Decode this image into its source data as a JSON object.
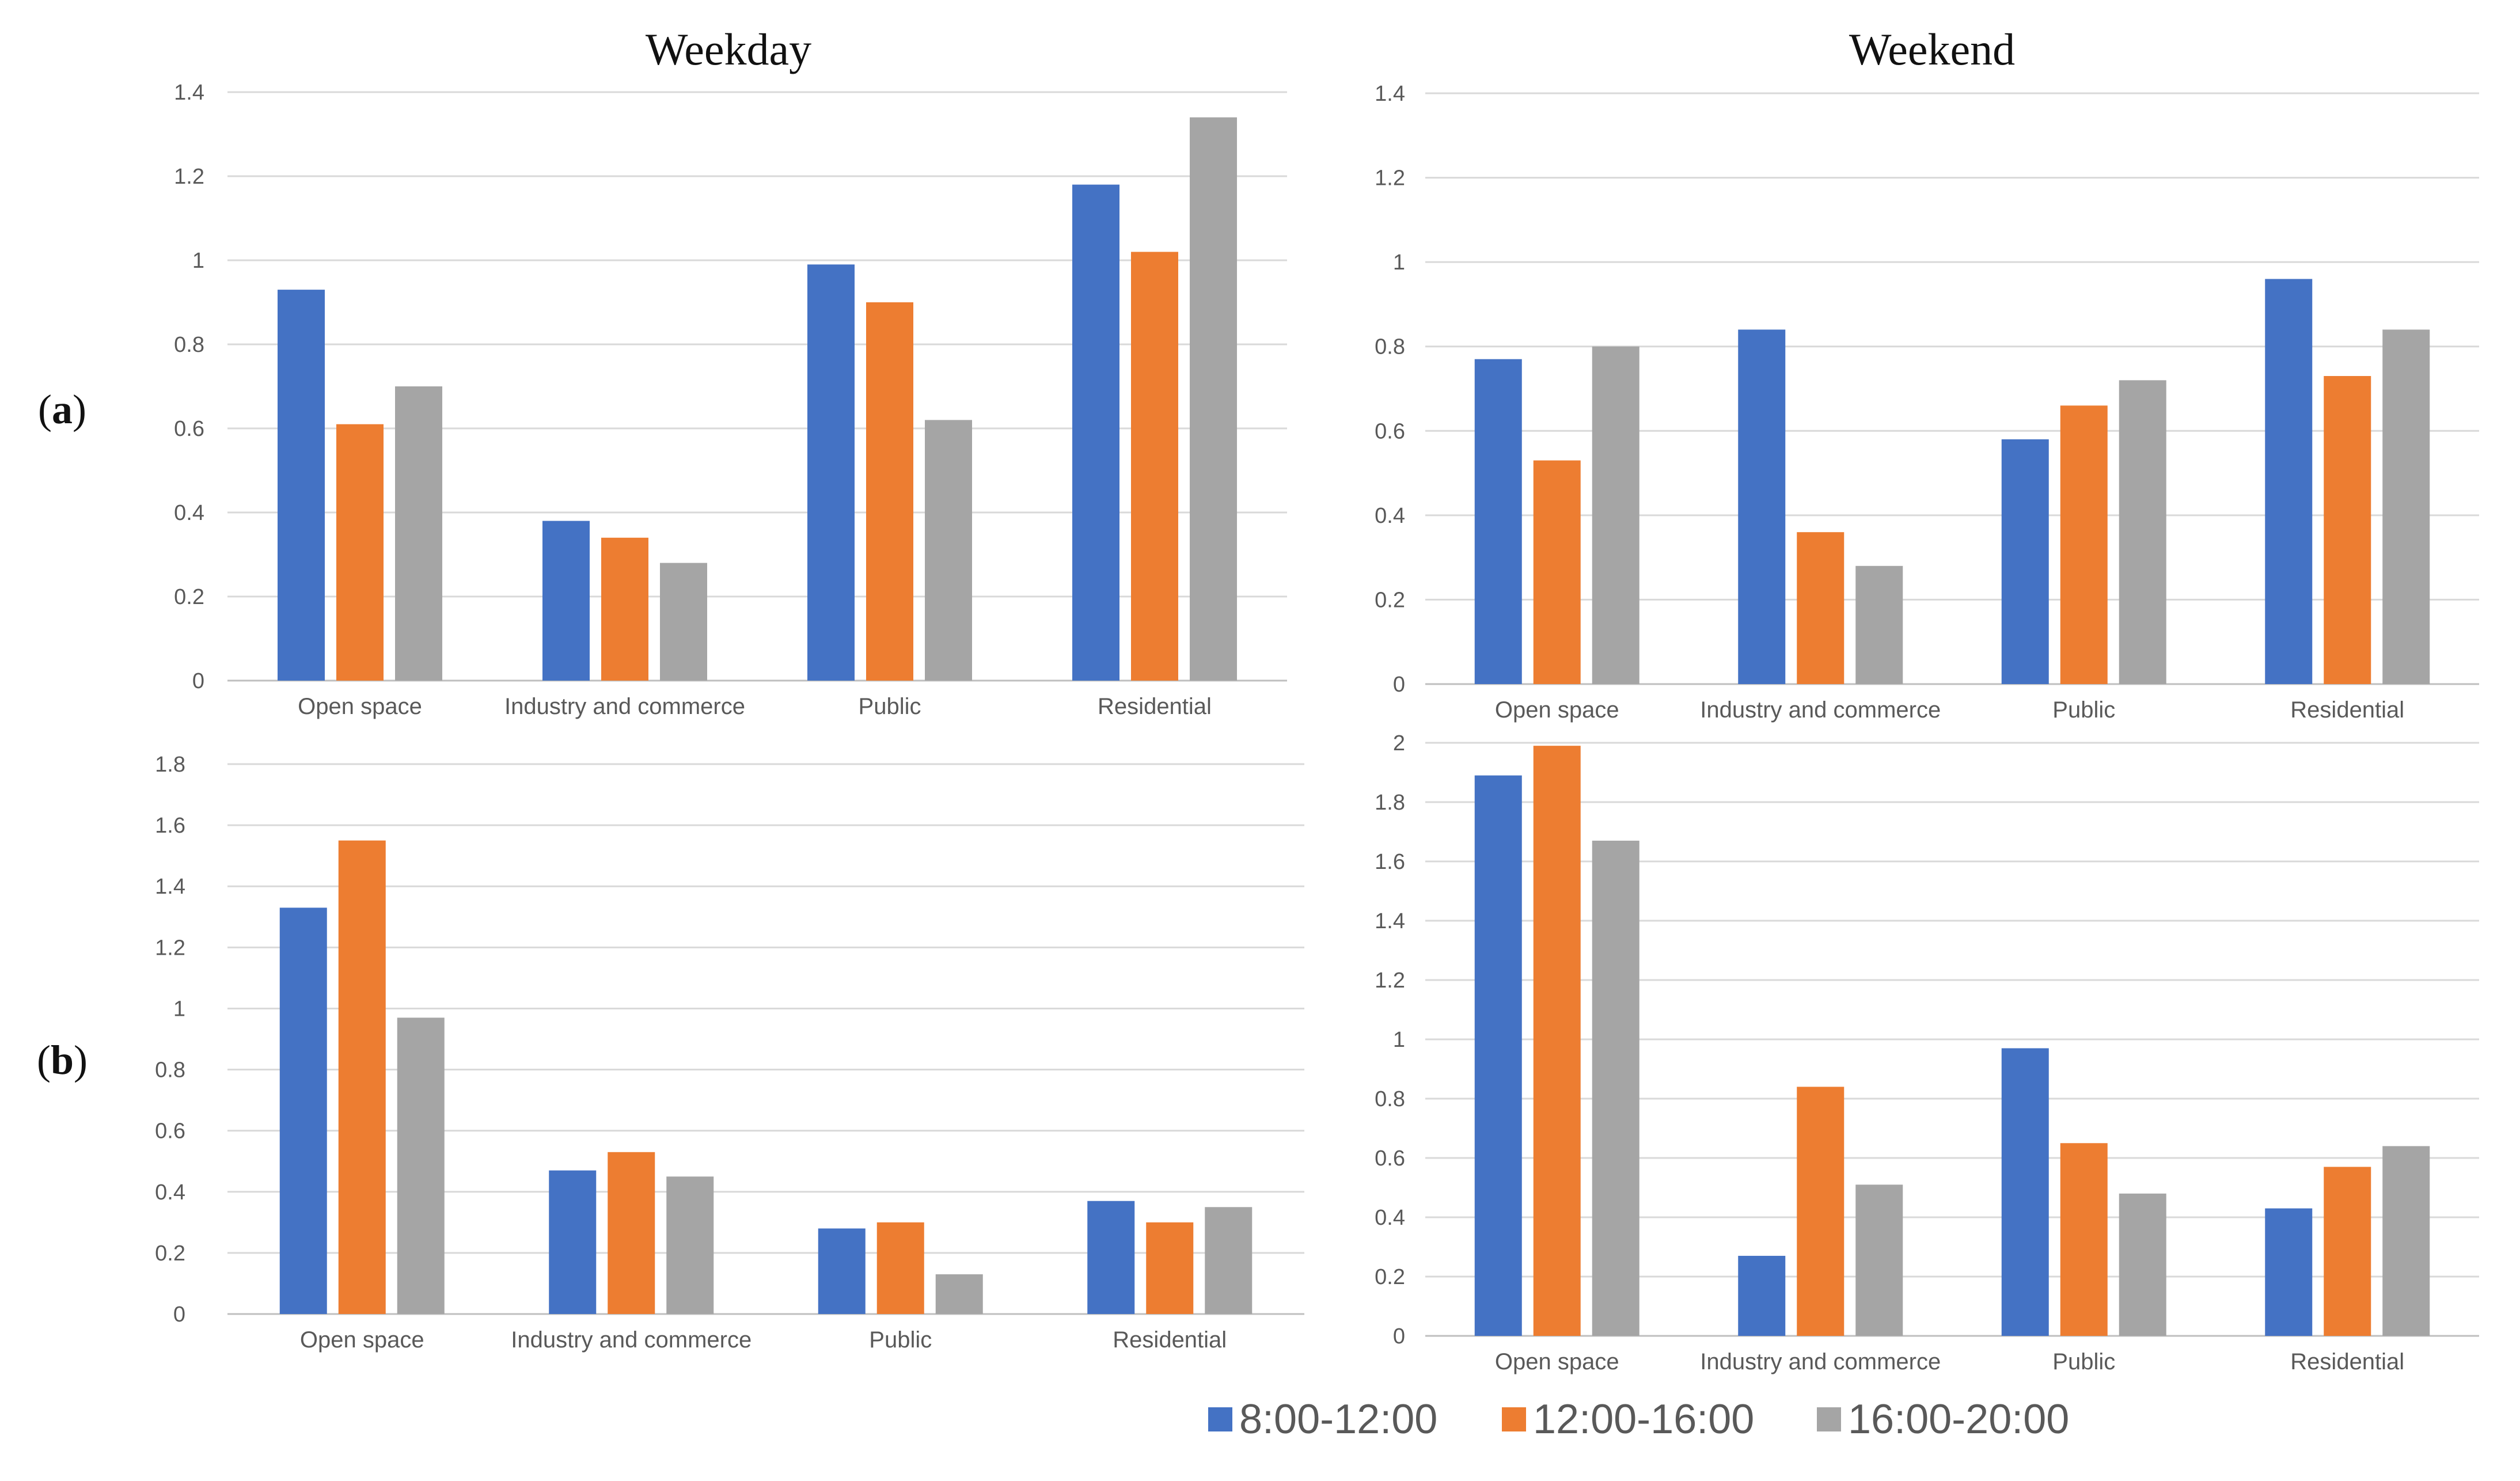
{
  "column_titles": {
    "weekday": "Weekday",
    "weekend": "Weekend"
  },
  "row_labels": {
    "a": {
      "open": "(",
      "letter": "a",
      "close": ")"
    },
    "b": {
      "open": "(",
      "letter": "b",
      "close": ")"
    }
  },
  "legend": [
    {
      "label": "8:00-12:00",
      "color": "#4472c4"
    },
    {
      "label": "12:00-16:00",
      "color": "#ed7d31"
    },
    {
      "label": "16:00-20:00",
      "color": "#a5a5a5"
    }
  ],
  "chart_data": [
    {
      "id": "a-weekday",
      "type": "bar",
      "row": "a",
      "column": "Weekday",
      "categories": [
        "Open space",
        "Industry and commerce",
        "Public",
        "Residential"
      ],
      "series": [
        {
          "name": "8:00-12:00",
          "color": "#4472c4",
          "values": [
            0.93,
            0.38,
            0.99,
            1.18
          ]
        },
        {
          "name": "12:00-16:00",
          "color": "#ed7d31",
          "values": [
            0.61,
            0.34,
            0.9,
            1.02
          ]
        },
        {
          "name": "16:00-20:00",
          "color": "#a5a5a5",
          "values": [
            0.7,
            0.28,
            0.62,
            1.34
          ]
        }
      ],
      "yticks": [
        "0",
        "0.2",
        "0.4",
        "0.6",
        "0.8",
        "1",
        "1.2",
        "1.4"
      ],
      "ylim": [
        0,
        1.4
      ],
      "grid": true
    },
    {
      "id": "a-weekend",
      "type": "bar",
      "row": "a",
      "column": "Weekend",
      "categories": [
        "Open space",
        "Industry and commerce",
        "Public",
        "Residential"
      ],
      "series": [
        {
          "name": "8:00-12:00",
          "color": "#4472c4",
          "values": [
            0.77,
            0.84,
            0.58,
            0.96
          ]
        },
        {
          "name": "12:00-16:00",
          "color": "#ed7d31",
          "values": [
            0.53,
            0.36,
            0.66,
            0.73
          ]
        },
        {
          "name": "16:00-20:00",
          "color": "#a5a5a5",
          "values": [
            0.8,
            0.28,
            0.72,
            0.84
          ]
        }
      ],
      "yticks": [
        "0",
        "0.2",
        "0.4",
        "0.6",
        "0.8",
        "1",
        "1.2",
        "1.4"
      ],
      "ylim": [
        0,
        1.4
      ],
      "grid": true
    },
    {
      "id": "b-weekday",
      "type": "bar",
      "row": "b",
      "column": "Weekday",
      "categories": [
        "Open space",
        "Industry and commerce",
        "Public",
        "Residential"
      ],
      "series": [
        {
          "name": "8:00-12:00",
          "color": "#4472c4",
          "values": [
            1.33,
            0.47,
            0.28,
            0.37
          ]
        },
        {
          "name": "12:00-16:00",
          "color": "#ed7d31",
          "values": [
            1.55,
            0.53,
            0.3,
            0.3
          ]
        },
        {
          "name": "16:00-20:00",
          "color": "#a5a5a5",
          "values": [
            0.97,
            0.45,
            0.13,
            0.35
          ]
        }
      ],
      "yticks": [
        "0",
        "0.2",
        "0.4",
        "0.6",
        "0.8",
        "1",
        "1.2",
        "1.4",
        "1.6",
        "1.8"
      ],
      "ylim": [
        0,
        1.8
      ],
      "grid": true
    },
    {
      "id": "b-weekend",
      "type": "bar",
      "row": "b",
      "column": "Weekend",
      "categories": [
        "Open space",
        "Industry and commerce",
        "Public",
        "Residential"
      ],
      "series": [
        {
          "name": "8:00-12:00",
          "color": "#4472c4",
          "values": [
            1.89,
            0.27,
            0.97,
            0.43
          ]
        },
        {
          "name": "12:00-16:00",
          "color": "#ed7d31",
          "values": [
            1.99,
            0.84,
            0.65,
            0.57
          ]
        },
        {
          "name": "16:00-20:00",
          "color": "#a5a5a5",
          "values": [
            1.67,
            0.51,
            0.48,
            0.64
          ]
        }
      ],
      "yticks": [
        "0",
        "0.2",
        "0.4",
        "0.6",
        "0.8",
        "1",
        "1.2",
        "1.4",
        "1.6",
        "1.8",
        "2"
      ],
      "ylim": [
        0,
        2
      ],
      "grid": true
    }
  ]
}
